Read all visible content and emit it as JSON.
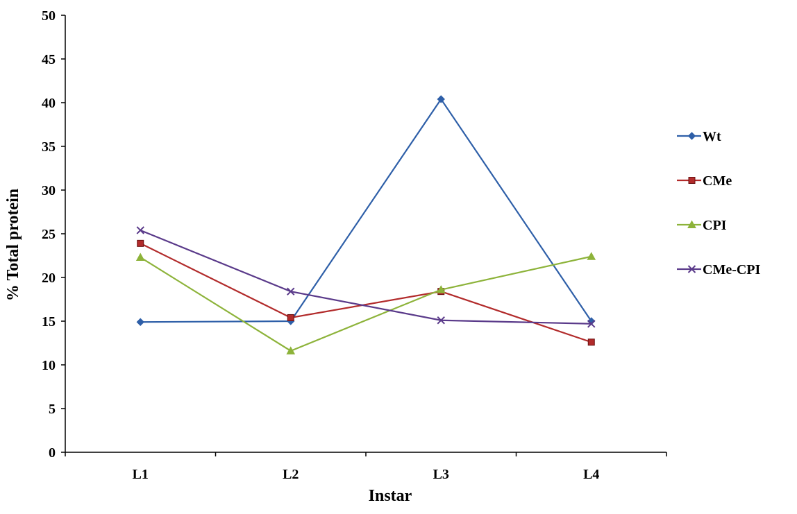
{
  "chart_data": {
    "type": "line",
    "title": "",
    "xlabel": "Instar",
    "ylabel": "% Total protein",
    "categories": [
      "L1",
      "L2",
      "L3",
      "L4"
    ],
    "ylim": [
      0,
      50
    ],
    "yticks": [
      0,
      5,
      10,
      15,
      20,
      25,
      30,
      35,
      40,
      45,
      50
    ],
    "grid": false,
    "legend_position": "right",
    "series": [
      {
        "name": "Wt",
        "color": "#2E5FA8",
        "marker": "diamond",
        "values": [
          14.9,
          15.0,
          40.4,
          15.0
        ]
      },
      {
        "name": "CMe",
        "color": "#B22B2B",
        "marker": "square",
        "values": [
          23.9,
          15.4,
          18.4,
          12.6
        ]
      },
      {
        "name": "CPI",
        "color": "#8DB33A",
        "marker": "triangle",
        "values": [
          22.3,
          11.6,
          18.6,
          22.4
        ]
      },
      {
        "name": "CMe-CPI",
        "color": "#5A3A8A",
        "marker": "x",
        "values": [
          25.4,
          18.4,
          15.1,
          14.7
        ]
      }
    ]
  }
}
